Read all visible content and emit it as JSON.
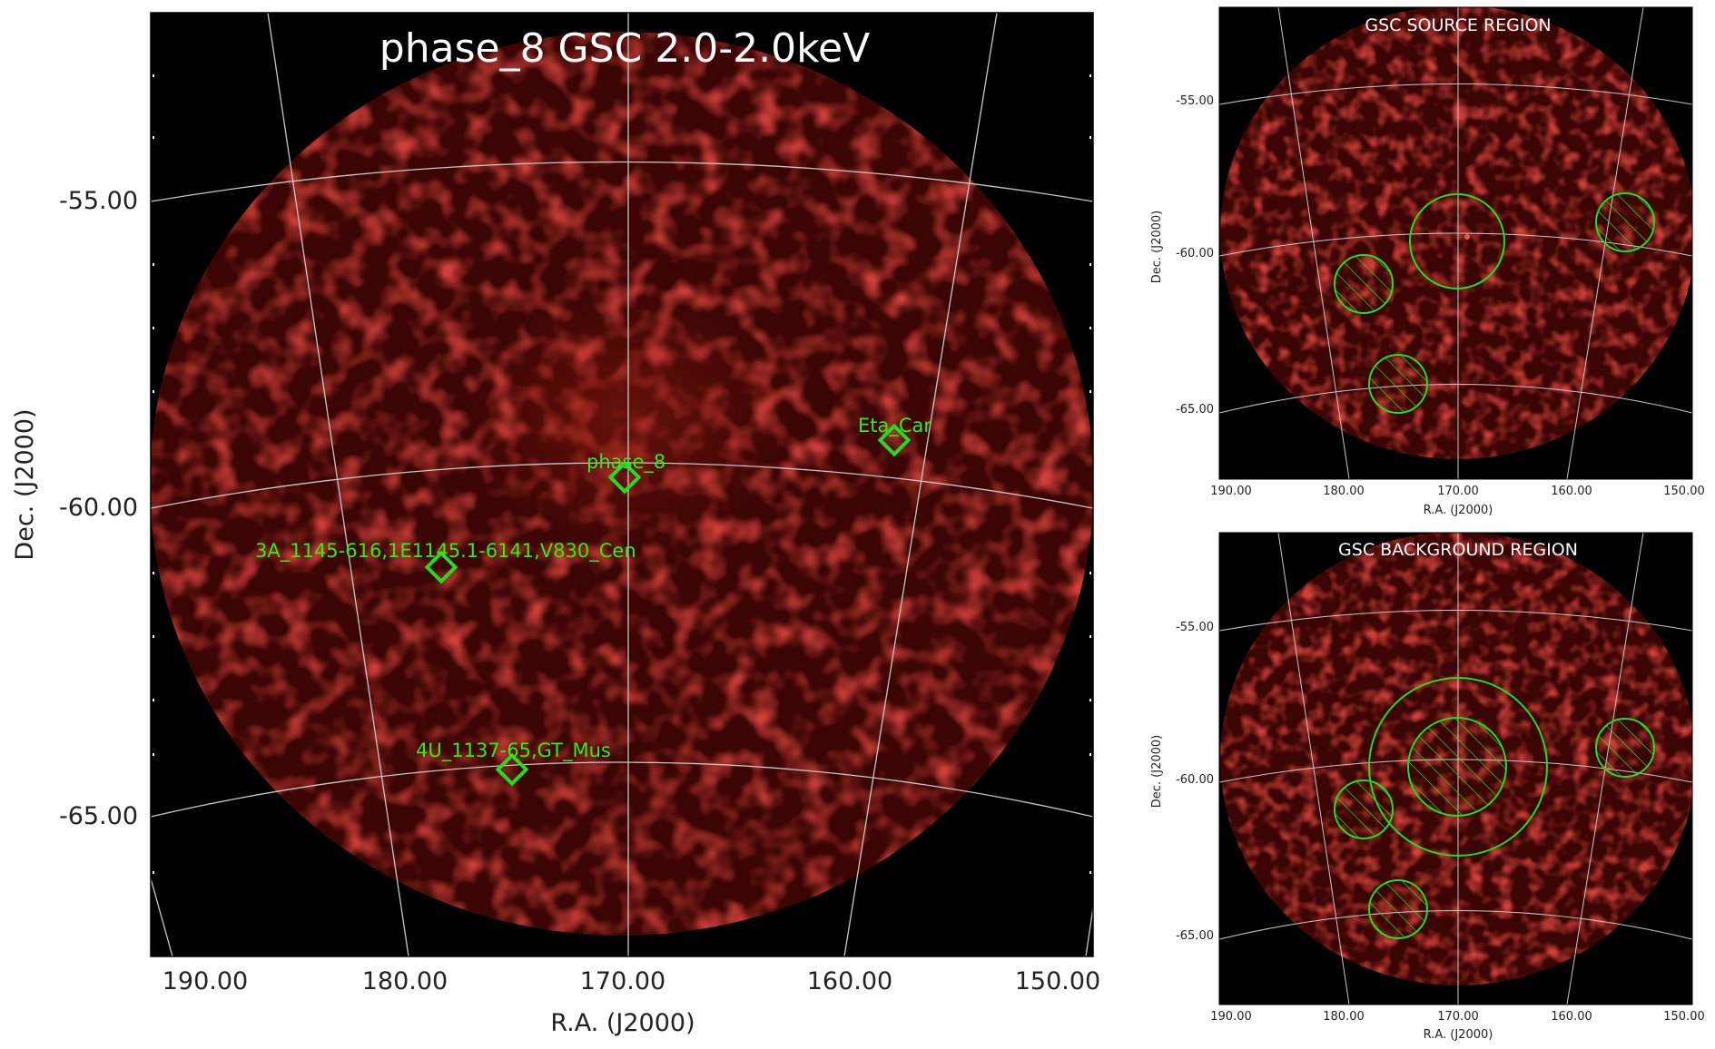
{
  "main_panel": {
    "title": "phase_8 GSC 2.0-2.0keV",
    "xlabel": "R.A. (J2000)",
    "ylabel": "Dec. (J2000)",
    "x_ticks": [
      "190.00",
      "180.00",
      "170.00",
      "160.00",
      "150.00"
    ],
    "y_ticks": [
      "-55.00",
      "-60.00",
      "-65.00"
    ],
    "sources": [
      {
        "name": "Eta_Car",
        "ra": 158.0,
        "dec": -59.7
      },
      {
        "name": "phase_8",
        "ra": 170.0,
        "dec": -60.3
      },
      {
        "name": "3A_1145-616,1E1145.1-6141,V830_Cen",
        "ra": 176.5,
        "dec": -61.9
      },
      {
        "name": "4U_1137-65,GT_Mus",
        "ra": 174.9,
        "dec": -65.3
      }
    ]
  },
  "source_panel": {
    "title": "GSC SOURCE REGION",
    "xlabel": "R.A. (J2000)",
    "ylabel": "Dec. (J2000)",
    "x_ticks": [
      "190.00",
      "180.00",
      "170.00",
      "160.00",
      "150.00"
    ],
    "y_ticks": [
      "-55.00",
      "-60.00",
      "-65.00"
    ]
  },
  "background_panel": {
    "title": "GSC BACKGROUND REGION",
    "xlabel": "R.A. (J2000)",
    "ylabel": "Dec. (J2000)",
    "x_ticks": [
      "190.00",
      "180.00",
      "170.00",
      "160.00",
      "150.00"
    ],
    "y_ticks": [
      "-55.00",
      "-60.00",
      "-65.00"
    ]
  },
  "colors": {
    "background": "#000000",
    "emission": "#a01010",
    "grid": "#c8c8c8",
    "region": "#22dd22",
    "label": "#33ee11"
  }
}
